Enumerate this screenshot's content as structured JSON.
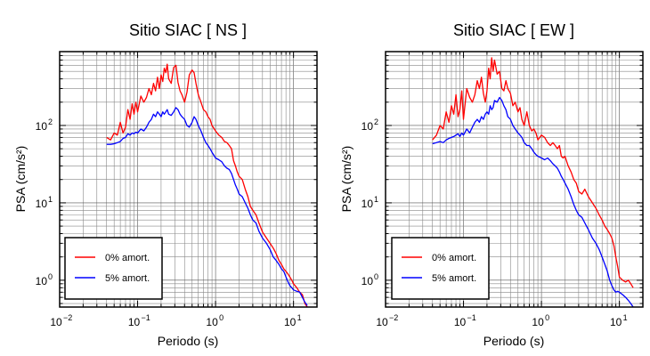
{
  "chart_data": [
    {
      "type": "line",
      "title": "Sitio SIAC [ NS ]",
      "xlabel": "Periodo (s)",
      "ylabel": "PSA (cm/s²)",
      "x_scale": "log",
      "y_scale": "log",
      "xlim": [
        0.01,
        20
      ],
      "ylim": [
        0.45,
        900
      ],
      "x_ticks": [
        {
          "value": 0.01,
          "base": "10",
          "exp": "−2"
        },
        {
          "value": 0.1,
          "base": "10",
          "exp": "−1"
        },
        {
          "value": 1,
          "base": "10",
          "exp": "0"
        },
        {
          "value": 10,
          "base": "10",
          "exp": "1"
        }
      ],
      "y_ticks": [
        {
          "value": 1,
          "base": "10",
          "exp": "0"
        },
        {
          "value": 10,
          "base": "10",
          "exp": "1"
        },
        {
          "value": 100,
          "base": "10",
          "exp": "2"
        }
      ],
      "grid": true,
      "legend_position": "bottom-left",
      "series": [
        {
          "name": "0% amort.",
          "color": "#ff0000",
          "x": [
            0.04,
            0.045,
            0.05,
            0.055,
            0.06,
            0.065,
            0.07,
            0.075,
            0.08,
            0.085,
            0.09,
            0.095,
            0.1,
            0.11,
            0.12,
            0.13,
            0.14,
            0.15,
            0.16,
            0.17,
            0.18,
            0.19,
            0.2,
            0.21,
            0.22,
            0.23,
            0.24,
            0.25,
            0.27,
            0.29,
            0.31,
            0.33,
            0.35,
            0.37,
            0.4,
            0.43,
            0.46,
            0.5,
            0.53,
            0.56,
            0.6,
            0.65,
            0.7,
            0.75,
            0.8,
            0.85,
            0.9,
            1.0,
            1.1,
            1.2,
            1.3,
            1.4,
            1.5,
            1.6,
            1.7,
            1.8,
            1.9,
            2.0,
            2.2,
            2.4,
            2.6,
            2.8,
            3.0,
            3.3,
            3.6,
            4.0,
            4.5,
            5.0,
            5.5,
            6.0,
            6.5,
            7.0,
            7.5,
            8.0,
            8.5,
            9.0,
            9.5,
            10,
            11,
            12,
            13,
            14,
            15
          ],
          "y": [
            70,
            65,
            80,
            75,
            110,
            80,
            95,
            160,
            120,
            190,
            140,
            200,
            150,
            240,
            200,
            230,
            300,
            250,
            350,
            280,
            420,
            300,
            450,
            370,
            550,
            480,
            620,
            400,
            350,
            560,
            600,
            360,
            280,
            250,
            200,
            270,
            450,
            520,
            480,
            350,
            250,
            200,
            160,
            150,
            130,
            120,
            100,
            85,
            75,
            70,
            62,
            60,
            55,
            50,
            35,
            30,
            25,
            22,
            20,
            15,
            12,
            9,
            8,
            7,
            5.5,
            4.2,
            3.5,
            3.0,
            2.6,
            2.2,
            1.8,
            1.6,
            1.4,
            1.3,
            1.2,
            1.1,
            1.0,
            0.9,
            0.8,
            0.7,
            0.65,
            0.5,
            0.45
          ]
        },
        {
          "name": "5% amort.",
          "color": "#0000ff",
          "x": [
            0.04,
            0.045,
            0.05,
            0.055,
            0.06,
            0.065,
            0.07,
            0.075,
            0.08,
            0.085,
            0.09,
            0.095,
            0.1,
            0.11,
            0.12,
            0.13,
            0.14,
            0.15,
            0.16,
            0.17,
            0.18,
            0.19,
            0.2,
            0.21,
            0.22,
            0.23,
            0.24,
            0.25,
            0.27,
            0.29,
            0.31,
            0.33,
            0.35,
            0.37,
            0.4,
            0.43,
            0.46,
            0.5,
            0.53,
            0.56,
            0.6,
            0.65,
            0.7,
            0.75,
            0.8,
            0.85,
            0.9,
            1.0,
            1.1,
            1.2,
            1.3,
            1.4,
            1.5,
            1.6,
            1.7,
            1.8,
            1.9,
            2.0,
            2.2,
            2.4,
            2.6,
            2.8,
            3.0,
            3.3,
            3.6,
            4.0,
            4.5,
            5.0,
            5.5,
            6.0,
            6.5,
            7.0,
            7.5,
            8.0,
            8.5,
            9.0,
            9.5,
            10,
            11,
            12,
            13,
            14,
            15
          ],
          "y": [
            57,
            57,
            58,
            60,
            62,
            68,
            70,
            78,
            75,
            80,
            78,
            82,
            80,
            90,
            85,
            95,
            110,
            120,
            140,
            130,
            150,
            140,
            130,
            150,
            140,
            150,
            160,
            140,
            135,
            150,
            170,
            160,
            140,
            130,
            120,
            100,
            95,
            110,
            130,
            120,
            100,
            85,
            70,
            60,
            55,
            50,
            45,
            38,
            36,
            34,
            30,
            28,
            27,
            24,
            20,
            17,
            15,
            13,
            12,
            10,
            8.5,
            7,
            6,
            5.5,
            4.3,
            3.5,
            3.0,
            2.5,
            2.0,
            1.8,
            1.6,
            1.4,
            1.3,
            1.1,
            0.95,
            0.85,
            0.8,
            0.75,
            0.72,
            0.7,
            0.6,
            0.52,
            0.47
          ]
        }
      ]
    },
    {
      "type": "line",
      "title": "Sitio SIAC [ EW ]",
      "xlabel": "Periodo (s)",
      "ylabel": "PSA (cm/s²)",
      "x_scale": "log",
      "y_scale": "log",
      "xlim": [
        0.01,
        20
      ],
      "ylim": [
        0.45,
        900
      ],
      "x_ticks": [
        {
          "value": 0.01,
          "base": "10",
          "exp": "−2"
        },
        {
          "value": 0.1,
          "base": "10",
          "exp": "−1"
        },
        {
          "value": 1,
          "base": "10",
          "exp": "0"
        },
        {
          "value": 10,
          "base": "10",
          "exp": "1"
        }
      ],
      "y_ticks": [
        {
          "value": 1,
          "base": "10",
          "exp": "0"
        },
        {
          "value": 10,
          "base": "10",
          "exp": "1"
        },
        {
          "value": 100,
          "base": "10",
          "exp": "2"
        }
      ],
      "grid": true,
      "legend_position": "bottom-left",
      "series": [
        {
          "name": "0% amort.",
          "color": "#ff0000",
          "x": [
            0.04,
            0.045,
            0.05,
            0.055,
            0.06,
            0.065,
            0.07,
            0.075,
            0.08,
            0.085,
            0.09,
            0.095,
            0.1,
            0.11,
            0.12,
            0.13,
            0.14,
            0.15,
            0.16,
            0.17,
            0.18,
            0.19,
            0.2,
            0.21,
            0.22,
            0.23,
            0.24,
            0.25,
            0.27,
            0.29,
            0.31,
            0.33,
            0.35,
            0.37,
            0.4,
            0.43,
            0.46,
            0.5,
            0.53,
            0.56,
            0.6,
            0.65,
            0.7,
            0.75,
            0.8,
            0.85,
            0.9,
            1.0,
            1.1,
            1.2,
            1.3,
            1.4,
            1.5,
            1.6,
            1.7,
            1.8,
            1.9,
            2.0,
            2.2,
            2.4,
            2.6,
            2.8,
            3.0,
            3.3,
            3.6,
            4.0,
            4.5,
            5.0,
            5.5,
            6.0,
            6.5,
            7.0,
            7.5,
            8.0,
            8.5,
            9.0,
            9.5,
            10,
            11,
            12,
            13,
            14,
            15
          ],
          "y": [
            65,
            75,
            100,
            90,
            150,
            110,
            180,
            140,
            250,
            130,
            160,
            280,
            120,
            300,
            230,
            200,
            250,
            380,
            300,
            420,
            260,
            200,
            280,
            550,
            400,
            750,
            500,
            700,
            460,
            500,
            300,
            280,
            380,
            300,
            260,
            180,
            200,
            150,
            170,
            120,
            100,
            150,
            100,
            85,
            90,
            80,
            65,
            75,
            70,
            60,
            55,
            60,
            55,
            50,
            55,
            40,
            38,
            40,
            30,
            25,
            20,
            18,
            14,
            13,
            15,
            12,
            10,
            8.5,
            7,
            6,
            5,
            4.5,
            4,
            3.5,
            2.8,
            2,
            1.5,
            1.1,
            1.0,
            0.95,
            1.0,
            0.9,
            0.8
          ]
        },
        {
          "name": "5% amort.",
          "color": "#0000ff",
          "x": [
            0.04,
            0.045,
            0.05,
            0.055,
            0.06,
            0.065,
            0.07,
            0.075,
            0.08,
            0.085,
            0.09,
            0.095,
            0.1,
            0.11,
            0.12,
            0.13,
            0.14,
            0.15,
            0.16,
            0.17,
            0.18,
            0.19,
            0.2,
            0.21,
            0.22,
            0.23,
            0.24,
            0.25,
            0.27,
            0.29,
            0.31,
            0.33,
            0.35,
            0.37,
            0.4,
            0.43,
            0.46,
            0.5,
            0.53,
            0.56,
            0.6,
            0.65,
            0.7,
            0.75,
            0.8,
            0.85,
            0.9,
            1.0,
            1.1,
            1.2,
            1.3,
            1.4,
            1.5,
            1.6,
            1.7,
            1.8,
            1.9,
            2.0,
            2.2,
            2.4,
            2.6,
            2.8,
            3.0,
            3.3,
            3.6,
            4.0,
            4.5,
            5.0,
            5.5,
            6.0,
            6.5,
            7.0,
            7.5,
            8.0,
            8.5,
            9.0,
            9.5,
            10,
            11,
            12,
            13,
            14,
            15
          ],
          "y": [
            58,
            60,
            62,
            60,
            65,
            68,
            70,
            72,
            75,
            78,
            72,
            80,
            75,
            90,
            80,
            95,
            110,
            120,
            110,
            130,
            120,
            140,
            150,
            140,
            180,
            160,
            170,
            210,
            200,
            230,
            210,
            180,
            160,
            130,
            120,
            100,
            90,
            80,
            75,
            70,
            60,
            55,
            55,
            50,
            45,
            42,
            40,
            38,
            36,
            38,
            35,
            32,
            30,
            28,
            25,
            22,
            20,
            18,
            15,
            12,
            9.5,
            8,
            7,
            6.5,
            5.5,
            4.5,
            3.5,
            3.0,
            2.5,
            2.0,
            1.6,
            1.3,
            1.0,
            0.85,
            0.75,
            0.7,
            0.72,
            0.7,
            0.65,
            0.6,
            0.55,
            0.5,
            0.45
          ]
        }
      ]
    }
  ]
}
